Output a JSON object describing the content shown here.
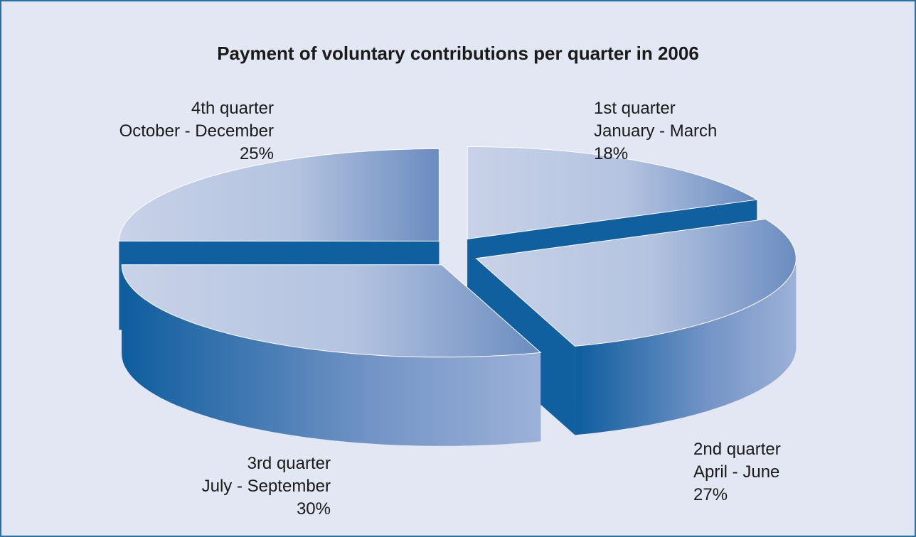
{
  "chart_data": {
    "type": "pie3d",
    "title": "Payment of voluntary contributions per quarter in 2006",
    "categories": [
      "1st quarter",
      "2nd quarter",
      "3rd quarter",
      "4th quarter"
    ],
    "periods": [
      "January - March",
      "April - June",
      "July - September",
      "October - December"
    ],
    "values": [
      18,
      27,
      30,
      25
    ],
    "value_labels": [
      "18%",
      "27%",
      "30%",
      "25%"
    ],
    "color": "#1060a0"
  }
}
